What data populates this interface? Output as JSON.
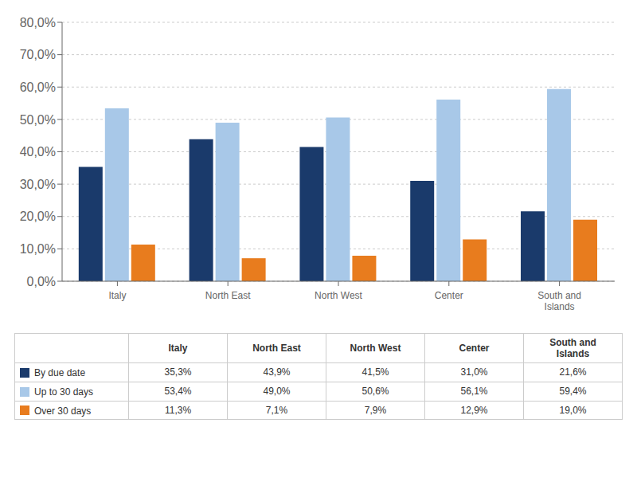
{
  "chart_data": {
    "type": "bar",
    "categories": [
      "Italy",
      "North East",
      "North West",
      "Center",
      "South and\nIslands"
    ],
    "series": [
      {
        "name": "By due date",
        "color": "#1a3a6b",
        "values": [
          35.3,
          43.9,
          41.5,
          31.0,
          21.6
        ],
        "value_labels": [
          "35,3%",
          "43,9%",
          "41,5%",
          "31,0%",
          "21,6%"
        ]
      },
      {
        "name": "Up to 30 days",
        "color": "#a8c8e8",
        "values": [
          53.4,
          49.0,
          50.6,
          56.1,
          59.4
        ],
        "value_labels": [
          "53,4%",
          "49,0%",
          "50,6%",
          "56,1%",
          "59,4%"
        ]
      },
      {
        "name": "Over 30 days",
        "color": "#e87c1e",
        "values": [
          11.3,
          7.1,
          7.9,
          12.9,
          19.0
        ],
        "value_labels": [
          "11,3%",
          "7,1%",
          "7,9%",
          "12,9%",
          "19,0%"
        ]
      }
    ],
    "ylim": [
      0,
      80
    ],
    "yticks": [
      {
        "value": 0,
        "label": "0,0%"
      },
      {
        "value": 10,
        "label": "10,0%"
      },
      {
        "value": 20,
        "label": "20,0%"
      },
      {
        "value": 30,
        "label": "30,0%"
      },
      {
        "value": 40,
        "label": "40,0%"
      },
      {
        "value": 50,
        "label": "50,0%"
      },
      {
        "value": 60,
        "label": "60,0%"
      },
      {
        "value": 70,
        "label": "70,0%"
      },
      {
        "value": 80,
        "label": "80,0%"
      }
    ],
    "grid": true
  }
}
